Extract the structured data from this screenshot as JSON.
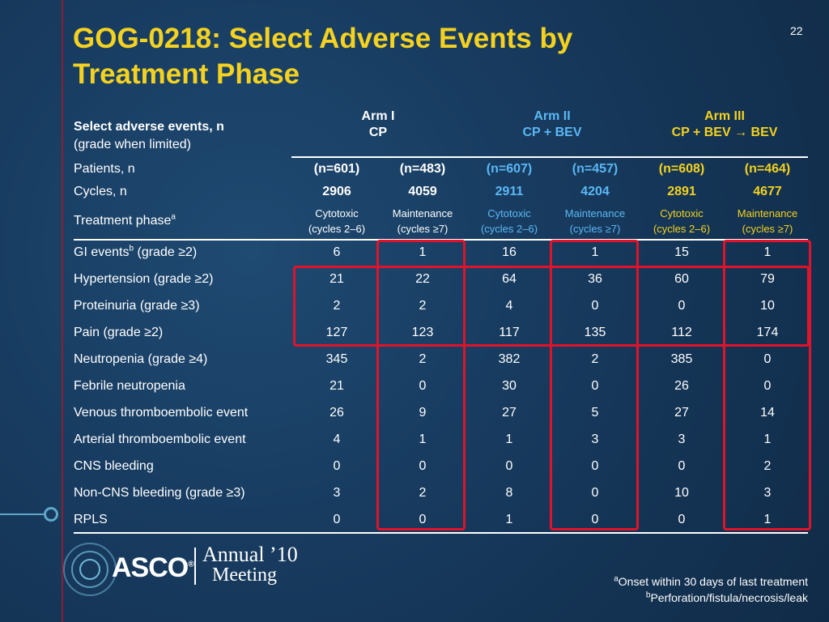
{
  "slide": {
    "title_line1": "GOG-0218: Select Adverse Events by",
    "title_line2": "Treatment Phase",
    "number": "22"
  },
  "table": {
    "header_label_bold": "Select adverse events, n",
    "header_label_sub": "(grade when limited)",
    "arms": [
      {
        "name": "Arm I",
        "regimen": "CP",
        "color": "#ffffff"
      },
      {
        "name": "Arm II",
        "regimen": "CP + BEV",
        "color": "#5bb8f5"
      },
      {
        "name": "Arm III",
        "regimen": "CP + BEV → BEV",
        "color": "#f4d21f"
      }
    ],
    "patients_label": "Patients, n",
    "patients": [
      "(n=601)",
      "(n=483)",
      "(n=607)",
      "(n=457)",
      "(n=608)",
      "(n=464)"
    ],
    "cycles_label": "Cycles, n",
    "cycles": [
      "2906",
      "4059",
      "2911",
      "4204",
      "2891",
      "4677"
    ],
    "phase_label": "Treatment phase",
    "phase_label_sup": "a",
    "phases": [
      {
        "name": "Cytotoxic",
        "range": "(cycles 2–6)"
      },
      {
        "name": "Maintenance",
        "range": "(cycles ≥7)"
      },
      {
        "name": "Cytotoxic",
        "range": "(cycles 2–6)"
      },
      {
        "name": "Maintenance",
        "range": "(cycles ≥7)"
      },
      {
        "name": "Cytotoxic",
        "range": "(cycles 2–6)"
      },
      {
        "name": "Maintenance",
        "range": "(cycles ≥7)"
      }
    ],
    "rows": [
      {
        "label": "GI events",
        "sup": "b",
        "suffix": " (grade ≥2)",
        "values": [
          "6",
          "1",
          "16",
          "1",
          "15",
          "1"
        ]
      },
      {
        "label": "Hypertension (grade ≥2)",
        "sup": "",
        "suffix": "",
        "values": [
          "21",
          "22",
          "64",
          "36",
          "60",
          "79"
        ]
      },
      {
        "label": "Proteinuria (grade ≥3)",
        "sup": "",
        "suffix": "",
        "values": [
          "2",
          "2",
          "4",
          "0",
          "0",
          "10"
        ]
      },
      {
        "label": "Pain (grade ≥2)",
        "sup": "",
        "suffix": "",
        "values": [
          "127",
          "123",
          "117",
          "135",
          "112",
          "174"
        ]
      },
      {
        "label": "Neutropenia (grade ≥4)",
        "sup": "",
        "suffix": "",
        "values": [
          "345",
          "2",
          "382",
          "2",
          "385",
          "0"
        ]
      },
      {
        "label": "Febrile neutropenia",
        "sup": "",
        "suffix": "",
        "values": [
          "21",
          "0",
          "30",
          "0",
          "26",
          "0"
        ]
      },
      {
        "label": "Venous thromboembolic event",
        "sup": "",
        "suffix": "",
        "values": [
          "26",
          "9",
          "27",
          "5",
          "27",
          "14"
        ]
      },
      {
        "label": "Arterial thromboembolic event",
        "sup": "",
        "suffix": "",
        "values": [
          "4",
          "1",
          "1",
          "3",
          "3",
          "1"
        ]
      },
      {
        "label": "CNS bleeding",
        "sup": "",
        "suffix": "",
        "values": [
          "0",
          "0",
          "0",
          "0",
          "0",
          "2"
        ]
      },
      {
        "label": "Non-CNS bleeding (grade ≥3)",
        "sup": "",
        "suffix": "",
        "values": [
          "3",
          "2",
          "8",
          "0",
          "10",
          "3"
        ]
      },
      {
        "label": "RPLS",
        "sup": "",
        "suffix": "",
        "values": [
          "0",
          "0",
          "1",
          "0",
          "0",
          "1"
        ]
      }
    ]
  },
  "footnotes": {
    "a_sup": "a",
    "a_text": "Onset  within 30 days of last treatment",
    "b_sup": "b",
    "b_text": "Perforation/fistula/necrosis/leak"
  },
  "logo": {
    "org": "ASCO",
    "reg": "®",
    "annual": "Annual ’10",
    "meeting": "Meeting"
  },
  "colors": {
    "background": "#17385a",
    "title": "#f4d21f",
    "arm2": "#5bb8f5",
    "arm3": "#f4d21f",
    "highlight": "#e0132a"
  }
}
